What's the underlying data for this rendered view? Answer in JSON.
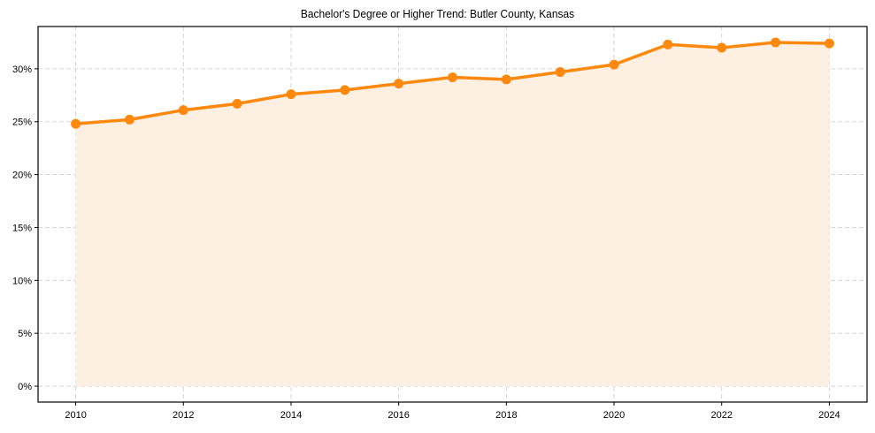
{
  "chart_data": {
    "type": "line",
    "title": "Bachelor's Degree or Higher Trend: Butler County, Kansas",
    "xlabel": "",
    "ylabel": "",
    "x": [
      2010,
      2011,
      2012,
      2013,
      2014,
      2015,
      2016,
      2017,
      2018,
      2019,
      2020,
      2021,
      2022,
      2023,
      2024
    ],
    "series": [
      {
        "name": "Bachelor's Degree or Higher",
        "values": [
          24.8,
          25.2,
          26.1,
          26.7,
          27.6,
          28.0,
          28.6,
          29.2,
          29.0,
          29.7,
          30.4,
          32.3,
          32.0,
          32.5,
          32.4
        ],
        "color": "#ff880e",
        "fill": "#fdf0e3"
      }
    ],
    "xticks": [
      "2010",
      "2012",
      "2014",
      "2016",
      "2018",
      "2020",
      "2022",
      "2024"
    ],
    "yticks": [
      "0%",
      "5%",
      "10%",
      "15%",
      "20%",
      "25%",
      "30%"
    ],
    "ylim": [
      -1.5,
      34
    ],
    "xlim": [
      2009.3,
      2024.7
    ],
    "grid": true,
    "legend": null
  }
}
